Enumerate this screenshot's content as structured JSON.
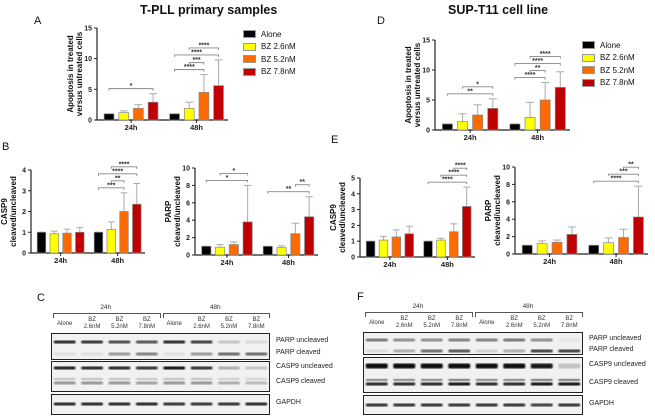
{
  "titles": {
    "left": "T-PLL primary samples",
    "right": "SUP-T11 cell line"
  },
  "panel_letters": {
    "A": "A",
    "B": "B",
    "C": "C",
    "D": "D",
    "E": "E",
    "F": "F"
  },
  "legend": [
    {
      "label": "Alone",
      "color": "#000000"
    },
    {
      "label": "BZ 2.6nM",
      "color": "#ffff00"
    },
    {
      "label": "BZ 5.2nM",
      "color": "#ff6a00"
    },
    {
      "label": "BZ 7.8nM",
      "color": "#c00000"
    }
  ],
  "chart_data": [
    {
      "id": "A",
      "type": "bar",
      "ylabel": [
        "Apoptosis in treated",
        "versus untreated cells"
      ],
      "ylim": [
        0,
        15
      ],
      "yticks": [
        0,
        5,
        10,
        15
      ],
      "categories": [
        "24h",
        "48h"
      ],
      "series": [
        {
          "name": "Alone",
          "values": [
            1,
            1
          ],
          "err_upper": [
            1,
            1
          ]
        },
        {
          "name": "BZ 2.6nM",
          "values": [
            1.2,
            1.9
          ],
          "err_upper": [
            1.5,
            2.9
          ]
        },
        {
          "name": "BZ 5.2nM",
          "values": [
            1.9,
            4.5
          ],
          "err_upper": [
            2.5,
            7.4
          ]
        },
        {
          "name": "BZ 7.8nM",
          "values": [
            2.9,
            5.6
          ],
          "err_upper": [
            4.3,
            9.8
          ]
        }
      ],
      "significance": [
        {
          "group": 0,
          "from": 0,
          "to": 3,
          "label": "*"
        },
        {
          "group": 1,
          "from": 0,
          "to": 2,
          "label": "****"
        },
        {
          "group": 1,
          "from": 1,
          "to": 2,
          "label": "***"
        },
        {
          "group": 1,
          "from": 0,
          "to": 3,
          "label": "****"
        },
        {
          "group": 1,
          "from": 1,
          "to": 3,
          "label": "****"
        }
      ]
    },
    {
      "id": "D",
      "type": "bar",
      "ylabel": [
        "Apoptosis in treated",
        "versus untreated cells"
      ],
      "ylim": [
        0,
        15
      ],
      "yticks": [
        0,
        5,
        10,
        15
      ],
      "categories": [
        "24h",
        "48h"
      ],
      "series": [
        {
          "name": "Alone",
          "values": [
            1,
            1
          ],
          "err_upper": [
            1,
            1
          ]
        },
        {
          "name": "BZ 2.6nM",
          "values": [
            1.4,
            2.1
          ],
          "err_upper": [
            2.7,
            4.6
          ]
        },
        {
          "name": "BZ 5.2nM",
          "values": [
            2.5,
            5.0
          ],
          "err_upper": [
            4.2,
            7.9
          ]
        },
        {
          "name": "BZ 7.8nM",
          "values": [
            3.6,
            7.1
          ],
          "err_upper": [
            5.2,
            9.7
          ]
        }
      ],
      "significance": [
        {
          "group": 0,
          "from": 0,
          "to": 3,
          "label": "**"
        },
        {
          "group": 0,
          "from": 1,
          "to": 3,
          "label": "*"
        },
        {
          "group": 1,
          "from": 0,
          "to": 2,
          "label": "****"
        },
        {
          "group": 1,
          "from": 1,
          "to": 2,
          "label": "**"
        },
        {
          "group": 1,
          "from": 0,
          "to": 3,
          "label": "****"
        },
        {
          "group": 1,
          "from": 1,
          "to": 3,
          "label": "****"
        }
      ]
    },
    {
      "id": "B1",
      "type": "bar",
      "ylabel": [
        "CASP9",
        "cleaved/uncleaved"
      ],
      "ylim": [
        0,
        4
      ],
      "yticks": [
        0,
        1,
        2,
        3,
        4
      ],
      "categories": [
        "24h",
        "48h"
      ],
      "series": [
        {
          "name": "Alone",
          "values": [
            1,
            1
          ],
          "err_upper": [
            1,
            1
          ]
        },
        {
          "name": "BZ 2.6nM",
          "values": [
            0.93,
            1.13
          ],
          "err_upper": [
            1.05,
            1.5
          ]
        },
        {
          "name": "BZ 5.2nM",
          "values": [
            0.96,
            2.0
          ],
          "err_upper": [
            1.15,
            2.9
          ]
        },
        {
          "name": "BZ 7.8nM",
          "values": [
            1.0,
            2.35
          ],
          "err_upper": [
            1.22,
            3.35
          ]
        }
      ],
      "significance": [
        {
          "group": 1,
          "from": 0,
          "to": 2,
          "label": "***"
        },
        {
          "group": 1,
          "from": 1,
          "to": 2,
          "label": "**"
        },
        {
          "group": 1,
          "from": 0,
          "to": 3,
          "label": "****"
        },
        {
          "group": 1,
          "from": 1,
          "to": 3,
          "label": "****"
        }
      ]
    },
    {
      "id": "B2",
      "type": "bar",
      "ylabel": [
        "PARP",
        "cleaved/uncleaved"
      ],
      "ylim": [
        0,
        10
      ],
      "yticks": [
        0,
        2,
        4,
        6,
        8,
        10
      ],
      "categories": [
        "24h",
        "48h"
      ],
      "series": [
        {
          "name": "Alone",
          "values": [
            1,
            1
          ],
          "err_upper": [
            1,
            1
          ]
        },
        {
          "name": "BZ 2.6nM",
          "values": [
            0.9,
            0.85
          ],
          "err_upper": [
            1.2,
            1.05
          ]
        },
        {
          "name": "BZ 5.2nM",
          "values": [
            1.2,
            2.45
          ],
          "err_upper": [
            1.5,
            3.65
          ]
        },
        {
          "name": "BZ 7.8nM",
          "values": [
            3.8,
            4.4
          ],
          "err_upper": [
            8.0,
            6.7
          ]
        }
      ],
      "significance": [
        {
          "group": 0,
          "from": 0,
          "to": 3,
          "label": "*"
        },
        {
          "group": 0,
          "from": 1,
          "to": 3,
          "label": "*"
        },
        {
          "group": 1,
          "from": 0,
          "to": 3,
          "label": "**"
        },
        {
          "group": 1,
          "from": 2,
          "to": 3,
          "label": "**"
        }
      ]
    },
    {
      "id": "E1",
      "type": "bar",
      "ylabel": [
        "CASP9",
        "cleaved/uncleaved"
      ],
      "ylim": [
        0,
        5
      ],
      "yticks": [
        0,
        1,
        2,
        3,
        4,
        5
      ],
      "categories": [
        "24h",
        "48h"
      ],
      "series": [
        {
          "name": "Alone",
          "values": [
            1,
            1
          ],
          "err_upper": [
            1,
            1
          ]
        },
        {
          "name": "BZ 2.6nM",
          "values": [
            1.07,
            1.07
          ],
          "err_upper": [
            1.3,
            1.18
          ]
        },
        {
          "name": "BZ 5.2nM",
          "values": [
            1.27,
            1.6
          ],
          "err_upper": [
            1.72,
            2.1
          ]
        },
        {
          "name": "BZ 7.8nM",
          "values": [
            1.47,
            3.2
          ],
          "err_upper": [
            1.95,
            4.42
          ]
        }
      ],
      "significance": [
        {
          "group": 1,
          "from": 0,
          "to": 3,
          "label": "****"
        },
        {
          "group": 1,
          "from": 1,
          "to": 3,
          "label": "****"
        },
        {
          "group": 1,
          "from": 2,
          "to": 3,
          "label": "****"
        }
      ]
    },
    {
      "id": "E2",
      "type": "bar",
      "ylabel": [
        "PARP",
        "cleaved/uncleaved"
      ],
      "ylim": [
        0,
        10
      ],
      "yticks": [
        0,
        2,
        4,
        6,
        8,
        10
      ],
      "categories": [
        "24h",
        "48h"
      ],
      "series": [
        {
          "name": "Alone",
          "values": [
            1,
            1
          ],
          "err_upper": [
            1,
            1
          ]
        },
        {
          "name": "BZ 2.6nM",
          "values": [
            1.2,
            1.3
          ],
          "err_upper": [
            1.5,
            1.85
          ]
        },
        {
          "name": "BZ 5.2nM",
          "values": [
            1.35,
            1.9
          ],
          "err_upper": [
            1.6,
            2.85
          ]
        },
        {
          "name": "BZ 7.8nM",
          "values": [
            2.25,
            4.25
          ],
          "err_upper": [
            3.1,
            7.8
          ]
        }
      ],
      "significance": [
        {
          "group": 1,
          "from": 0,
          "to": 3,
          "label": "****"
        },
        {
          "group": 1,
          "from": 1,
          "to": 3,
          "label": "***"
        },
        {
          "group": 1,
          "from": 2,
          "to": 3,
          "label": "**"
        }
      ]
    }
  ],
  "blots": [
    {
      "id": "C",
      "timepoints": [
        "24h",
        "48h"
      ],
      "lanes": [
        [
          "Alone"
        ],
        [
          "BZ",
          "2.6nM"
        ],
        [
          "BZ",
          "5.2nM"
        ],
        [
          "BZ",
          "7.8nM"
        ],
        [
          "Alone"
        ],
        [
          "BZ",
          "2.6nM"
        ],
        [
          "BZ",
          "5.2nM"
        ],
        [
          "BZ",
          "7.8nM"
        ]
      ],
      "rows": [
        {
          "label": "PARP uncleaved",
          "intensity": [
            0.9,
            0.85,
            0.75,
            0.7,
            0.9,
            0.8,
            0.2,
            0.1
          ]
        },
        {
          "label": "PARP cleaved",
          "intensity": [
            0.08,
            0.08,
            0.4,
            0.5,
            0.08,
            0.4,
            0.6,
            0.6
          ]
        },
        {
          "label": "CASP9 uncleaved",
          "intensity": [
            0.95,
            0.9,
            0.9,
            0.85,
            1,
            0.85,
            0.3,
            0.2
          ]
        },
        {
          "label": "CASP9 cleaved",
          "intensity": [
            0.4,
            0.4,
            0.4,
            0.35,
            0.4,
            0.4,
            0.3,
            0.25
          ]
        },
        {
          "label": "GAPDH",
          "intensity": [
            0.9,
            0.9,
            0.9,
            0.9,
            0.85,
            0.85,
            0.85,
            0.9
          ]
        }
      ]
    },
    {
      "id": "F",
      "timepoints": [
        "24h",
        "48h"
      ],
      "lanes": [
        [
          "Alone"
        ],
        [
          "BZ",
          "2.6nM"
        ],
        [
          "BZ",
          "5.2nM"
        ],
        [
          "BZ",
          "7.8nM"
        ],
        [
          "Alone"
        ],
        [
          "BZ",
          "2.6nM"
        ],
        [
          "BZ",
          "5.2nM"
        ],
        [
          "BZ",
          "7.8nM"
        ]
      ],
      "rows": [
        {
          "label": "PARP uncleaved",
          "intensity": [
            0.55,
            0.45,
            0.45,
            0.5,
            0.5,
            0.55,
            0.45,
            0.05
          ]
        },
        {
          "label": "PARP cleaved",
          "intensity": [
            0.1,
            0.3,
            0.6,
            0.7,
            0.15,
            0.3,
            0.8,
            0.8
          ]
        },
        {
          "label": "CASP9 uncleaved",
          "intensity": [
            1,
            1,
            1,
            1,
            1,
            1,
            0.95,
            0.2
          ]
        },
        {
          "label": "CASP9 cleaved",
          "intensity": [
            0.9,
            0.9,
            0.9,
            1,
            0.9,
            0.9,
            1,
            1
          ]
        },
        {
          "label": "GAPDH",
          "intensity": [
            0.85,
            0.85,
            0.85,
            0.85,
            0.85,
            0.85,
            0.8,
            0.85
          ]
        }
      ]
    }
  ]
}
